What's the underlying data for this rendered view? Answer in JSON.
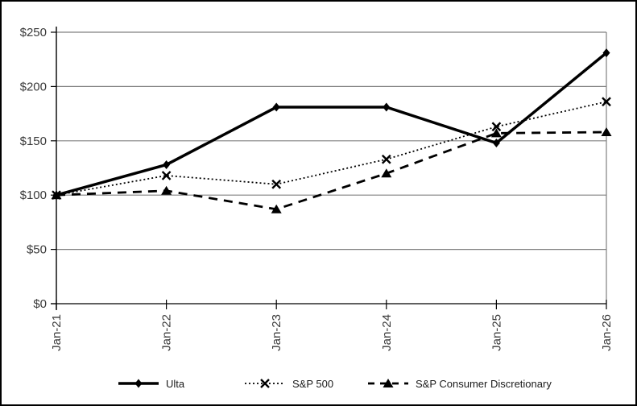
{
  "figure": {
    "background_color": "#ffffff",
    "border_color": "#000000"
  },
  "chart_data": {
    "type": "line",
    "title": "",
    "xlabel": "",
    "ylabel": "",
    "categories": [
      "Jan-21",
      "Jan-22",
      "Jan-23",
      "Jan-24",
      "Jan-25",
      "Jan-26"
    ],
    "series": [
      {
        "name": "Ulta",
        "values": [
          100,
          128,
          181,
          181,
          148,
          231
        ],
        "marker": "diamond",
        "line_style": "solid"
      },
      {
        "name": "S&P 500",
        "values": [
          100,
          118,
          110,
          133,
          163,
          186
        ],
        "marker": "x",
        "line_style": "dotted"
      },
      {
        "name": "S&P Consumer Discretionary",
        "values": [
          100,
          104,
          87,
          120,
          157,
          158
        ],
        "marker": "triangle",
        "line_style": "dashed"
      }
    ],
    "y_ticks": [
      "$0",
      "$50",
      "$100",
      "$150",
      "$200",
      "$250"
    ],
    "y_tick_values": [
      0,
      50,
      100,
      150,
      200,
      250
    ],
    "ylim": [
      0,
      250
    ],
    "grid": true,
    "legend_position": "bottom",
    "colors": {
      "series": "#000000",
      "gridline": "#808080",
      "axis": "#000000",
      "tick_label": "#3a3a3a"
    }
  }
}
